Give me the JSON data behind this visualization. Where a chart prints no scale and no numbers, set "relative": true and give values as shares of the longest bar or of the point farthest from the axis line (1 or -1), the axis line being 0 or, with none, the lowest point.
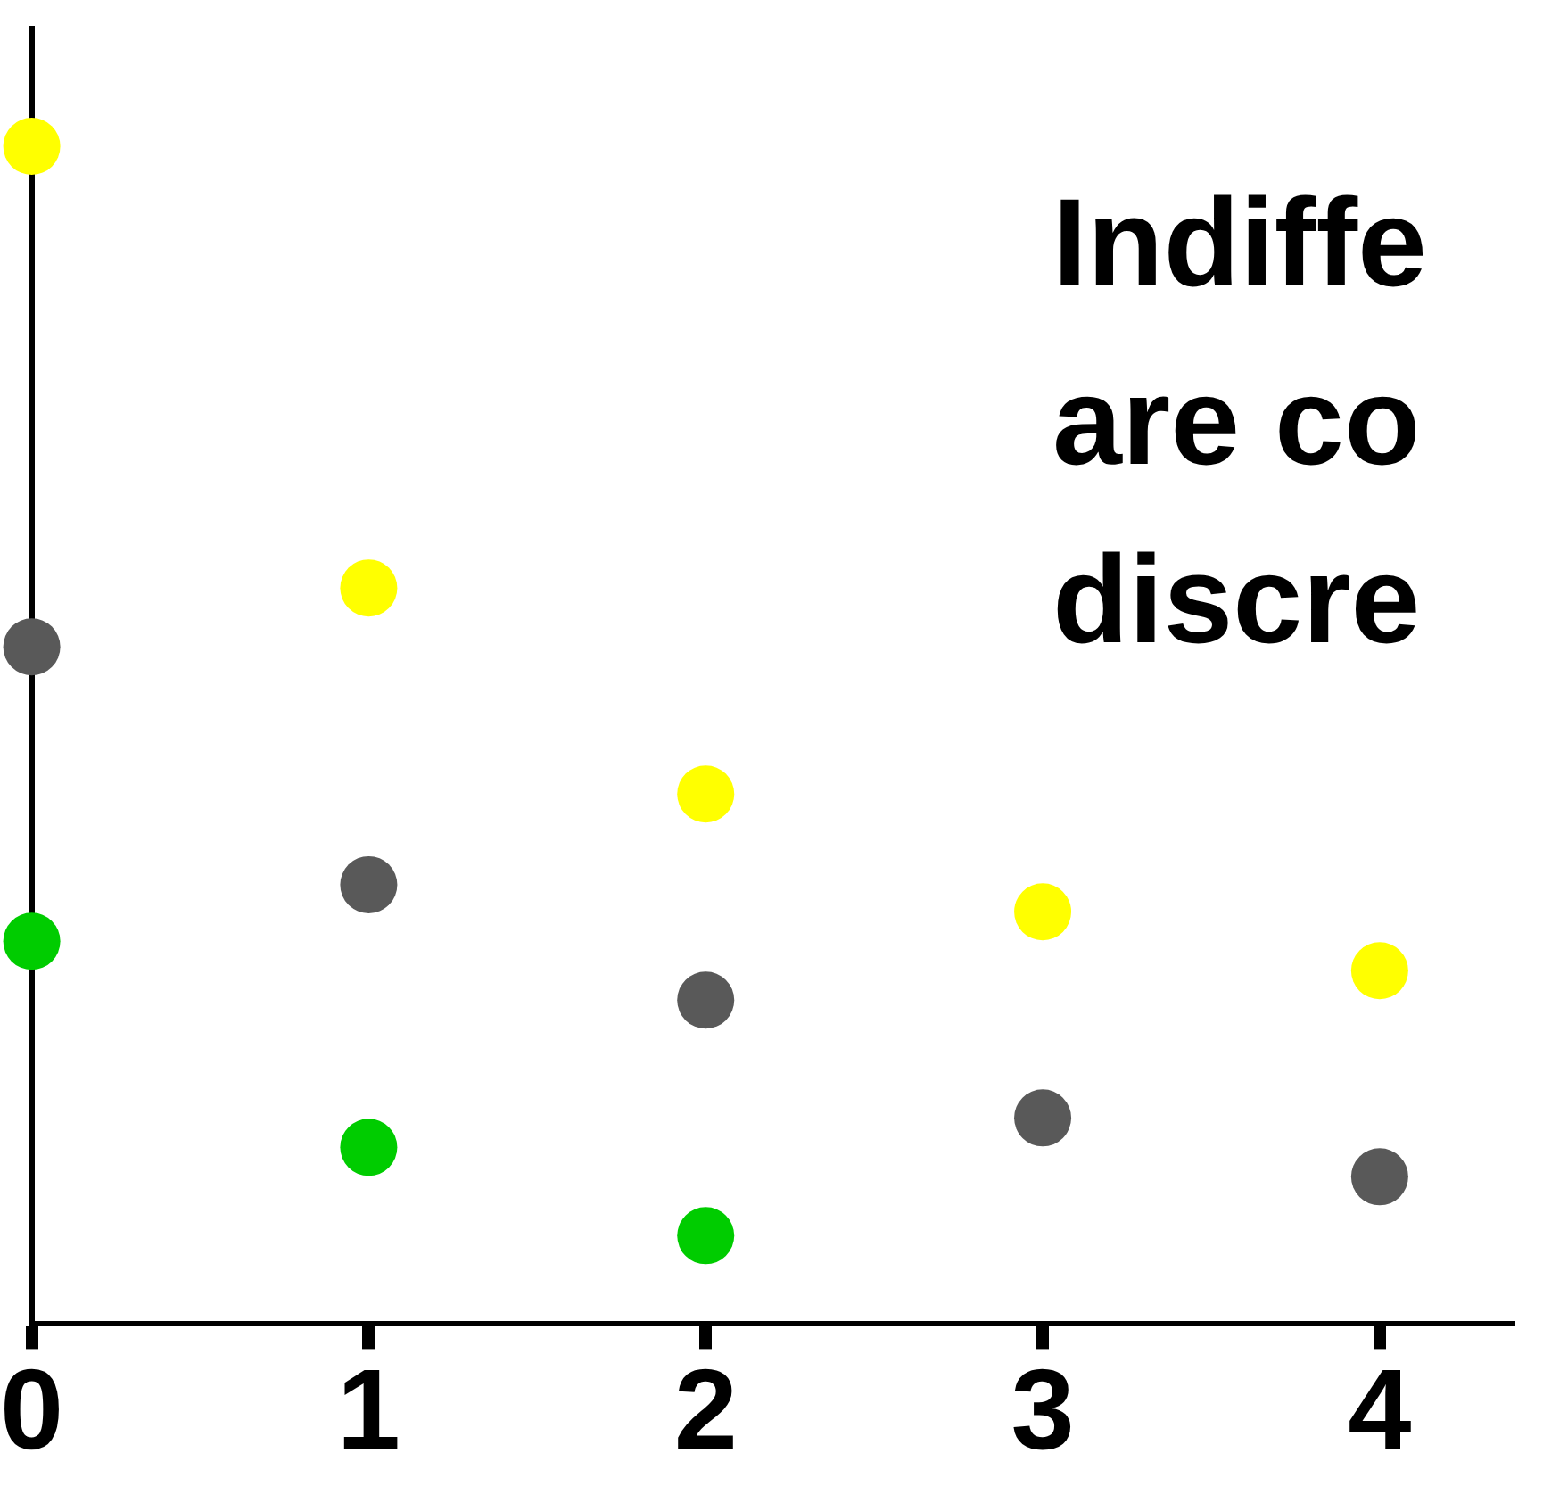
{
  "chart_data": {
    "type": "scatter",
    "relative": true,
    "x": [
      0,
      1,
      2,
      3,
      4
    ],
    "xlim": [
      0,
      4.4
    ],
    "xticks": [
      0,
      1,
      2,
      3,
      4
    ],
    "marker": "circle",
    "grid": false,
    "legend": false,
    "tick_labels": "x",
    "annotations": [
      "Indiffe\nare co\ndiscre"
    ],
    "series": [
      {
        "color": "#ffff00",
        "values": [
          1.0,
          0.625,
          0.45,
          0.35,
          0.3
        ]
      },
      {
        "color": "#595959",
        "values": [
          0.575,
          0.373,
          0.275,
          0.175,
          0.125
        ]
      },
      {
        "color": "#00cc00",
        "values": [
          0.325,
          0.15,
          0.075,
          null,
          null
        ]
      }
    ]
  }
}
